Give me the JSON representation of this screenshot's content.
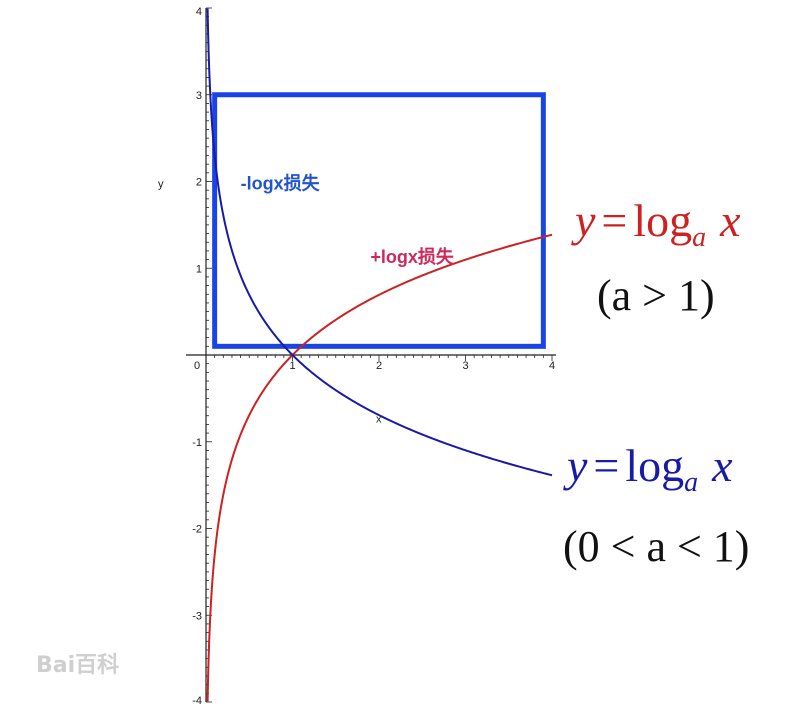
{
  "chart_data": {
    "type": "line",
    "title": "",
    "xlabel": "x",
    "ylabel": "y",
    "xlim": [
      0,
      4
    ],
    "ylim": [
      -4,
      4
    ],
    "x_ticks": [
      "0",
      "1",
      "2",
      "3",
      "4"
    ],
    "y_ticks": [
      "-4",
      "-3",
      "-2",
      "-1",
      "1",
      "2",
      "3",
      "4"
    ],
    "grid": false,
    "series": [
      {
        "name": "y = log_a x (a > 1)",
        "color": "#cc2222",
        "x": [
          0.02,
          0.05,
          0.1,
          0.2,
          0.3,
          0.5,
          0.7,
          1,
          1.5,
          2,
          2.5,
          3,
          3.5,
          4
        ],
        "y": [
          -3.91,
          -3.0,
          -2.3,
          -1.61,
          -1.2,
          -0.69,
          -0.36,
          0,
          0.41,
          0.69,
          0.92,
          1.1,
          1.25,
          1.39
        ]
      },
      {
        "name": "y = log_a x (0 < a < 1)",
        "color": "#1a1aa8",
        "x": [
          0.02,
          0.05,
          0.1,
          0.2,
          0.3,
          0.5,
          0.7,
          1,
          1.5,
          2,
          2.5,
          3,
          3.5,
          4
        ],
        "y": [
          3.91,
          3.0,
          2.3,
          1.61,
          1.2,
          0.69,
          0.36,
          0,
          -0.41,
          -0.69,
          -0.92,
          -1.1,
          -1.25,
          -1.39
        ]
      }
    ],
    "highlight_box": {
      "x": [
        0.1,
        3.9
      ],
      "y": [
        0.1,
        3
      ],
      "color": "#1a44e6"
    },
    "annotations": [
      {
        "text": "-logx损失",
        "x": 0.4,
        "y": 2.0,
        "color": "#2255cc"
      },
      {
        "text": "+logx损失",
        "x": 1.9,
        "y": 1.15,
        "color": "#cc2a5a"
      }
    ],
    "formulas": [
      {
        "lhs": "y",
        "eq": "=",
        "log": "log",
        "base": "a",
        "arg": "x",
        "condition": "(a > 1)",
        "color": "#cc2222"
      },
      {
        "lhs": "y",
        "eq": "=",
        "log": "log",
        "base": "a",
        "arg": "x",
        "condition": "(0 < a < 1)",
        "color": "#1a1aa8"
      }
    ]
  },
  "watermark": {
    "text": "Bai百科"
  }
}
